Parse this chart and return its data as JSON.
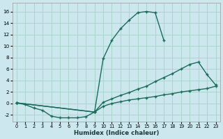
{
  "xlabel": "Humidex (Indice chaleur)",
  "bg_color": "#cce8ee",
  "grid_color": "#aad4cc",
  "line_color": "#1a6b5a",
  "xlim": [
    -0.5,
    23.5
  ],
  "ylim": [
    -3.2,
    17.5
  ],
  "xticks": [
    0,
    1,
    2,
    3,
    4,
    5,
    6,
    7,
    8,
    9,
    10,
    11,
    12,
    13,
    14,
    15,
    16,
    17,
    18,
    19,
    20,
    21,
    22,
    23
  ],
  "yticks": [
    -2,
    0,
    2,
    4,
    6,
    8,
    10,
    12,
    14,
    16
  ],
  "curve_top_x": [
    0,
    9,
    10,
    11,
    12,
    13,
    14,
    15,
    16,
    17
  ],
  "curve_top_y": [
    0.1,
    -1.5,
    7.8,
    11.0,
    13.0,
    14.5,
    15.8,
    16.0,
    15.8,
    11.0
  ],
  "curve_mid_x": [
    0,
    9,
    10,
    11,
    12,
    13,
    14,
    15,
    16,
    17,
    18,
    19,
    20,
    21,
    22,
    23
  ],
  "curve_mid_y": [
    0.1,
    -1.5,
    0.2,
    0.8,
    1.4,
    1.9,
    2.5,
    3.0,
    3.8,
    4.5,
    5.2,
    6.0,
    6.8,
    7.2,
    5.0,
    3.2
  ],
  "curve_bot_x": [
    0,
    1,
    2,
    3,
    4,
    5,
    6,
    7,
    8,
    9,
    10,
    11,
    12,
    13,
    14,
    15,
    16,
    17,
    18,
    19,
    20,
    21,
    22,
    23
  ],
  "curve_bot_y": [
    0.1,
    -0.2,
    -0.8,
    -1.2,
    -2.2,
    -2.5,
    -2.5,
    -2.5,
    -2.3,
    -1.5,
    -0.5,
    0.0,
    0.3,
    0.6,
    0.8,
    1.0,
    1.2,
    1.5,
    1.7,
    2.0,
    2.2,
    2.4,
    2.6,
    3.0
  ]
}
